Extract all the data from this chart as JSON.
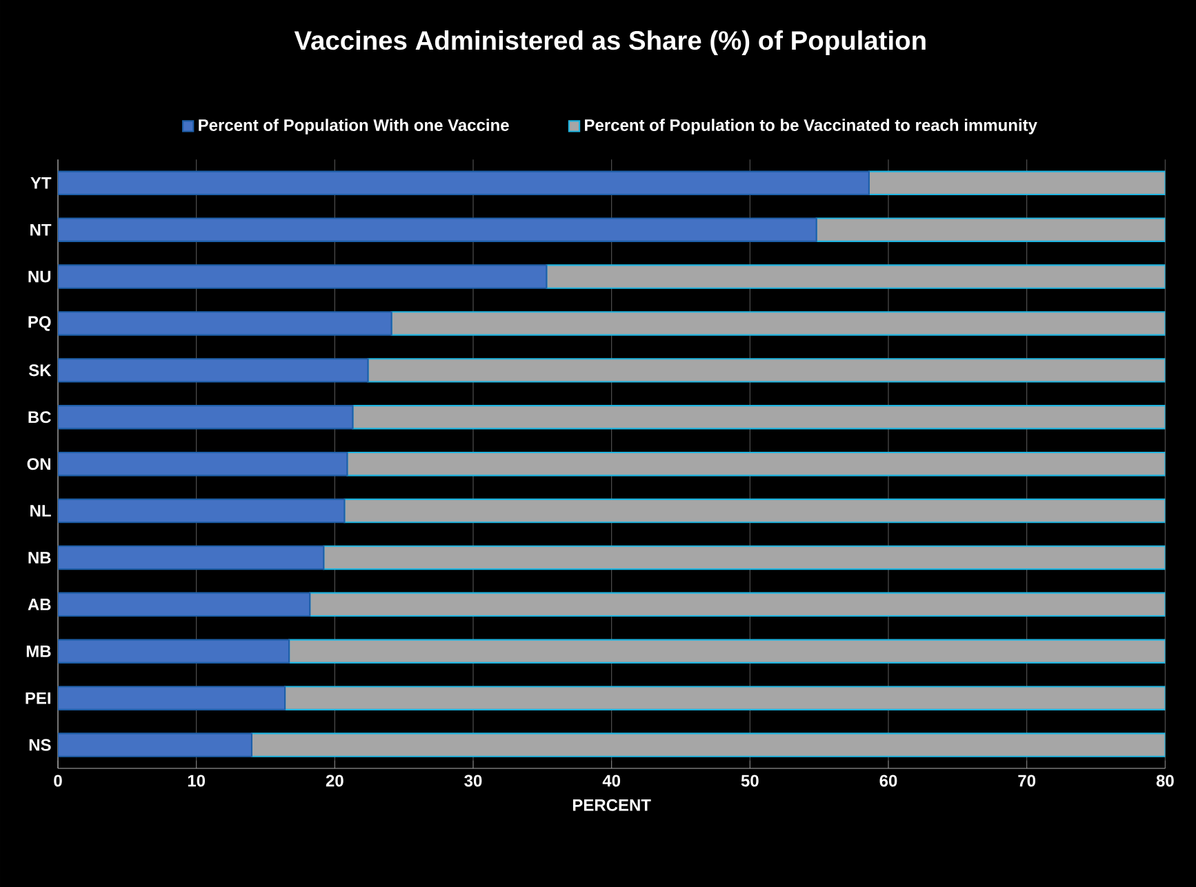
{
  "chart_data": {
    "type": "bar",
    "orientation": "horizontal",
    "stacked": true,
    "title": "Vaccines Administered as Share (%) of Population",
    "xlabel": "PERCENT",
    "categories": [
      "YT",
      "NT",
      "NU",
      "PQ",
      "SK",
      "BC",
      "ON",
      "NL",
      "NB",
      "AB",
      "MB",
      "PEI",
      "NS"
    ],
    "series": [
      {
        "name": "Percent of Population With one Vaccine",
        "color": "#4472c4",
        "values": [
          58.6,
          54.8,
          35.3,
          24.1,
          22.4,
          21.3,
          20.9,
          20.7,
          19.2,
          18.2,
          16.7,
          16.4,
          14.0
        ]
      },
      {
        "name": "Percent of Population to be Vaccinated to reach immunity",
        "color": "#a6a6a6",
        "values": [
          21.4,
          25.2,
          44.7,
          55.9,
          57.6,
          58.7,
          59.1,
          59.3,
          60.8,
          61.8,
          63.3,
          63.6,
          66.0
        ]
      }
    ],
    "xlim": [
      0,
      80
    ],
    "xticks": [
      0,
      10,
      20,
      30,
      40,
      50,
      60,
      70,
      80
    ],
    "grid": "x",
    "legend": "top"
  }
}
